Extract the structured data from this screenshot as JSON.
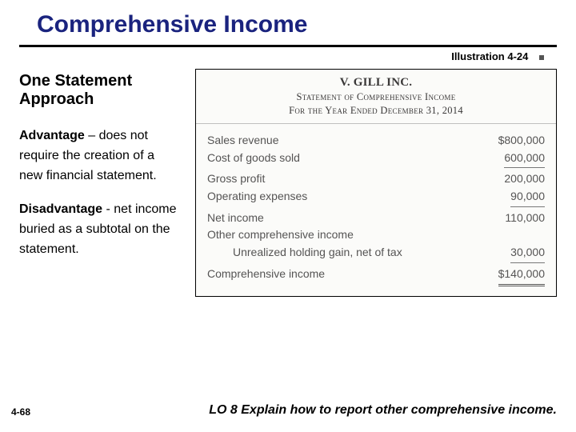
{
  "title": "Comprehensive Income",
  "illustration_label": "Illustration 4-24",
  "left": {
    "subhead": "One Statement Approach",
    "advantage_lead": "Advantage",
    "advantage_rest": " – does not require the creation of a new financial statement.",
    "disadvantage_lead": "Disadvantage",
    "disadvantage_rest": " - net income buried as a subtotal on the statement."
  },
  "exhibit": {
    "company": "V. GILL INC.",
    "statement_title": "Statement of Comprehensive Income",
    "period": "For the Year Ended December 31, 2014",
    "rows": {
      "sales_label": "Sales revenue",
      "sales_amt": "$800,000",
      "cogs_label": "Cost of goods sold",
      "cogs_amt": "600,000",
      "gp_label": "Gross profit",
      "gp_amt": "200,000",
      "opex_label": "Operating expenses",
      "opex_amt": "90,000",
      "ni_label": "Net income",
      "ni_amt": "110,000",
      "oci_label": "Other comprehensive income",
      "uhg_label": "Unrealized holding gain, net of tax",
      "uhg_amt": "30,000",
      "ci_label": "Comprehensive income",
      "ci_amt": "$140,000"
    }
  },
  "footer": {
    "page": "4-68",
    "lo": "LO 8  Explain how to report other comprehensive income."
  },
  "colors": {
    "title": "#1a237e",
    "exhibit_bg": "#fbfbf9",
    "exhibit_text": "#555454",
    "rule": "#000000"
  }
}
